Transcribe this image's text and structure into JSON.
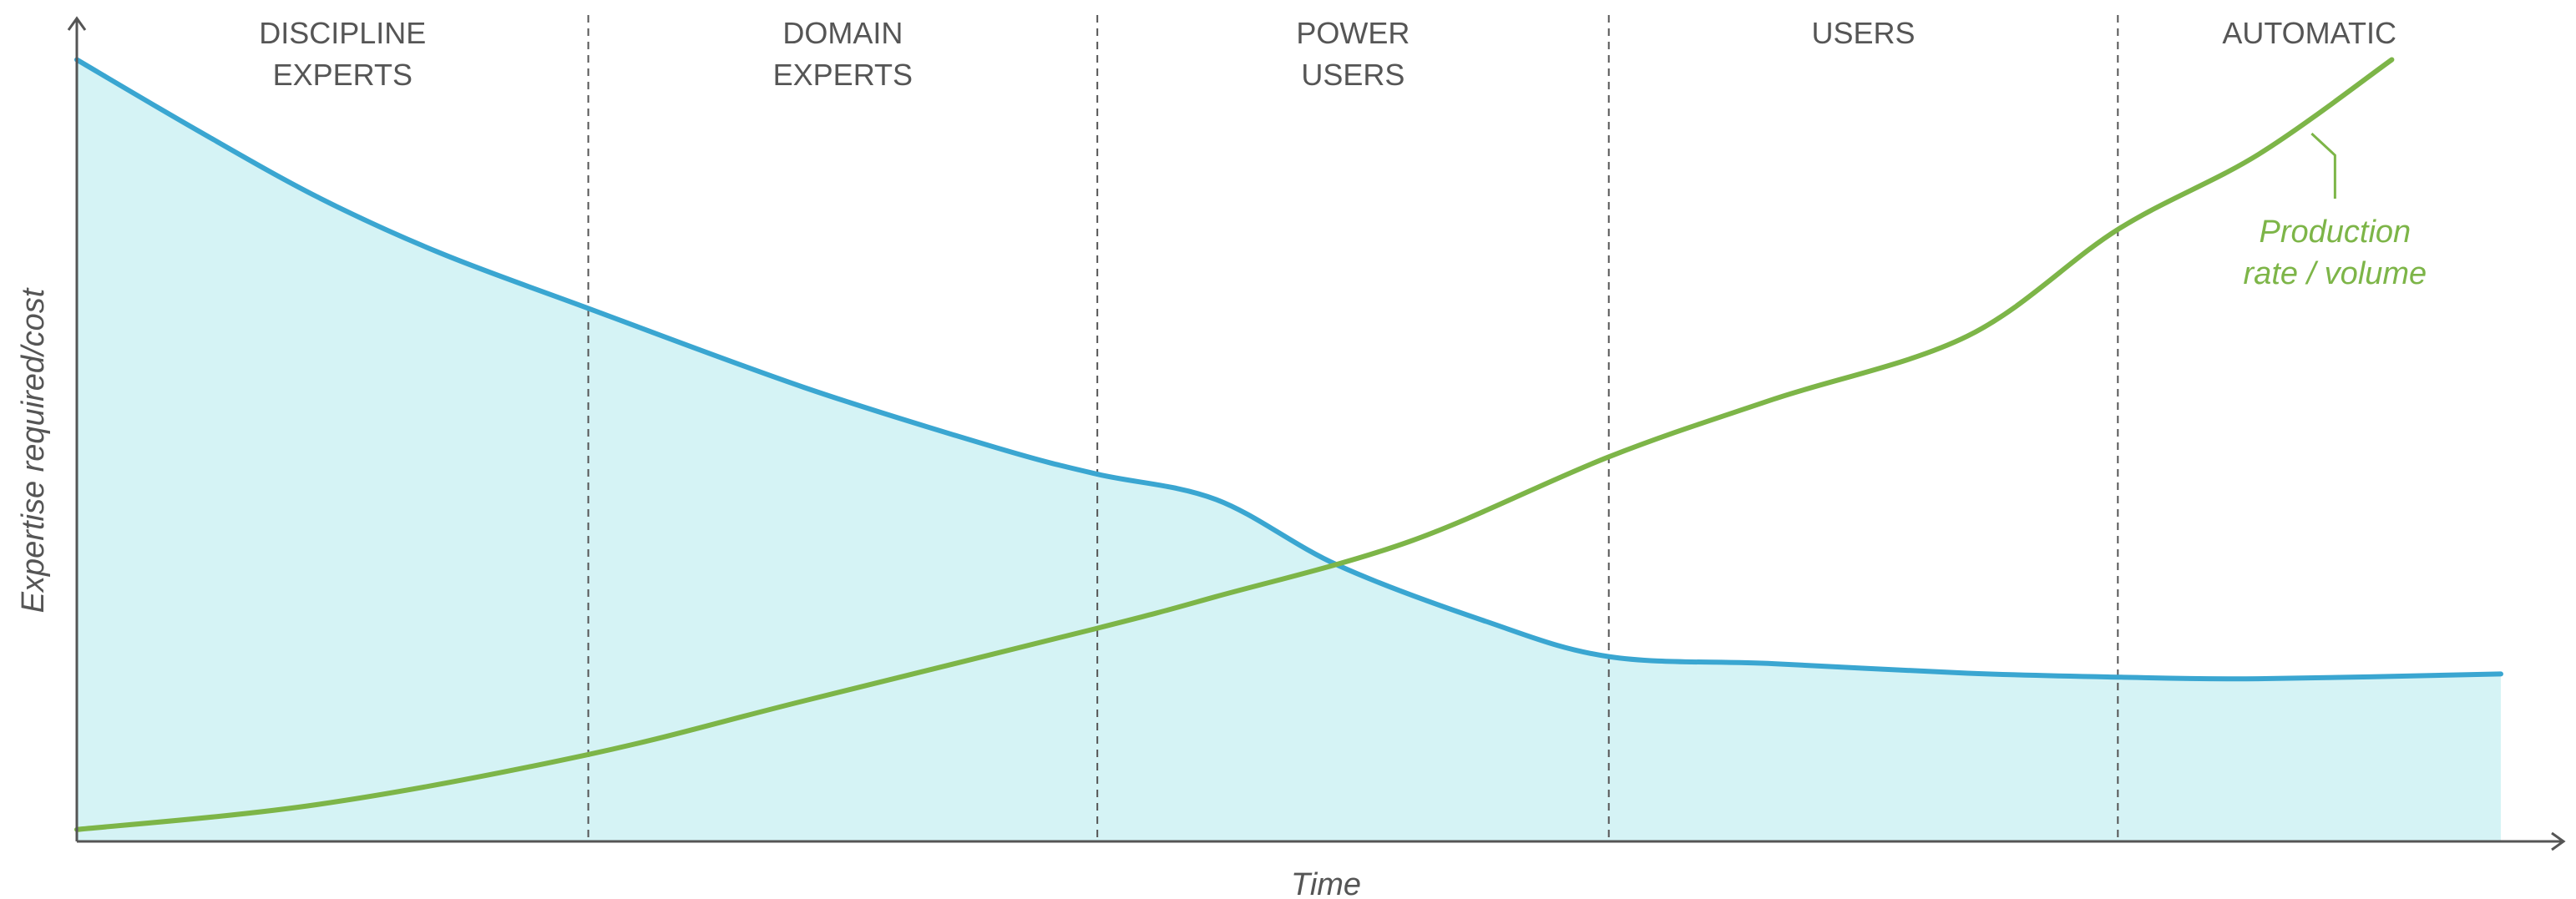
{
  "chart_data": {
    "type": "line",
    "xlabel": "Time",
    "ylabel": "Expertise required/cost",
    "xlim": [
      0,
      1
    ],
    "ylim": [
      0,
      1
    ],
    "grid": false,
    "zones": [
      {
        "label": [
          "DISCIPLINE",
          "EXPERTS"
        ],
        "start": 0.0,
        "end": 0.211
      },
      {
        "label": [
          "DOMAIN",
          "EXPERTS"
        ],
        "start": 0.211,
        "end": 0.421
      },
      {
        "label": [
          "POWER",
          "USERS"
        ],
        "start": 0.421,
        "end": 0.632
      },
      {
        "label": [
          "USERS"
        ],
        "start": 0.632,
        "end": 0.842
      },
      {
        "label": [
          "AUTOMATIC"
        ],
        "start": 0.842,
        "end": 1.0
      }
    ],
    "series": [
      {
        "name": "",
        "color": "#3aa6d1",
        "fill": "#d5f3f5",
        "x": [
          0.0,
          0.05,
          0.1,
          0.15,
          0.211,
          0.3,
          0.38,
          0.421,
          0.47,
          0.52,
          0.58,
          0.632,
          0.7,
          0.78,
          0.842,
          0.9,
          1.0
        ],
        "y": [
          0.99,
          0.9,
          0.815,
          0.745,
          0.675,
          0.575,
          0.498,
          0.465,
          0.433,
          0.35,
          0.28,
          0.234,
          0.225,
          0.213,
          0.208,
          0.206,
          0.212
        ]
      },
      {
        "name": "Production rate / volume",
        "color": "#7db548",
        "x": [
          0.0,
          0.1,
          0.211,
          0.3,
          0.421,
          0.47,
          0.55,
          0.632,
          0.7,
          0.78,
          0.842,
          0.9,
          0.955
        ],
        "y": [
          0.015,
          0.047,
          0.11,
          0.178,
          0.27,
          0.31,
          0.38,
          0.487,
          0.56,
          0.64,
          0.775,
          0.87,
          0.99
        ]
      }
    ],
    "annotation": {
      "lines": [
        "Production",
        "rate / volume"
      ],
      "series": 1,
      "color": "#7db548"
    }
  }
}
